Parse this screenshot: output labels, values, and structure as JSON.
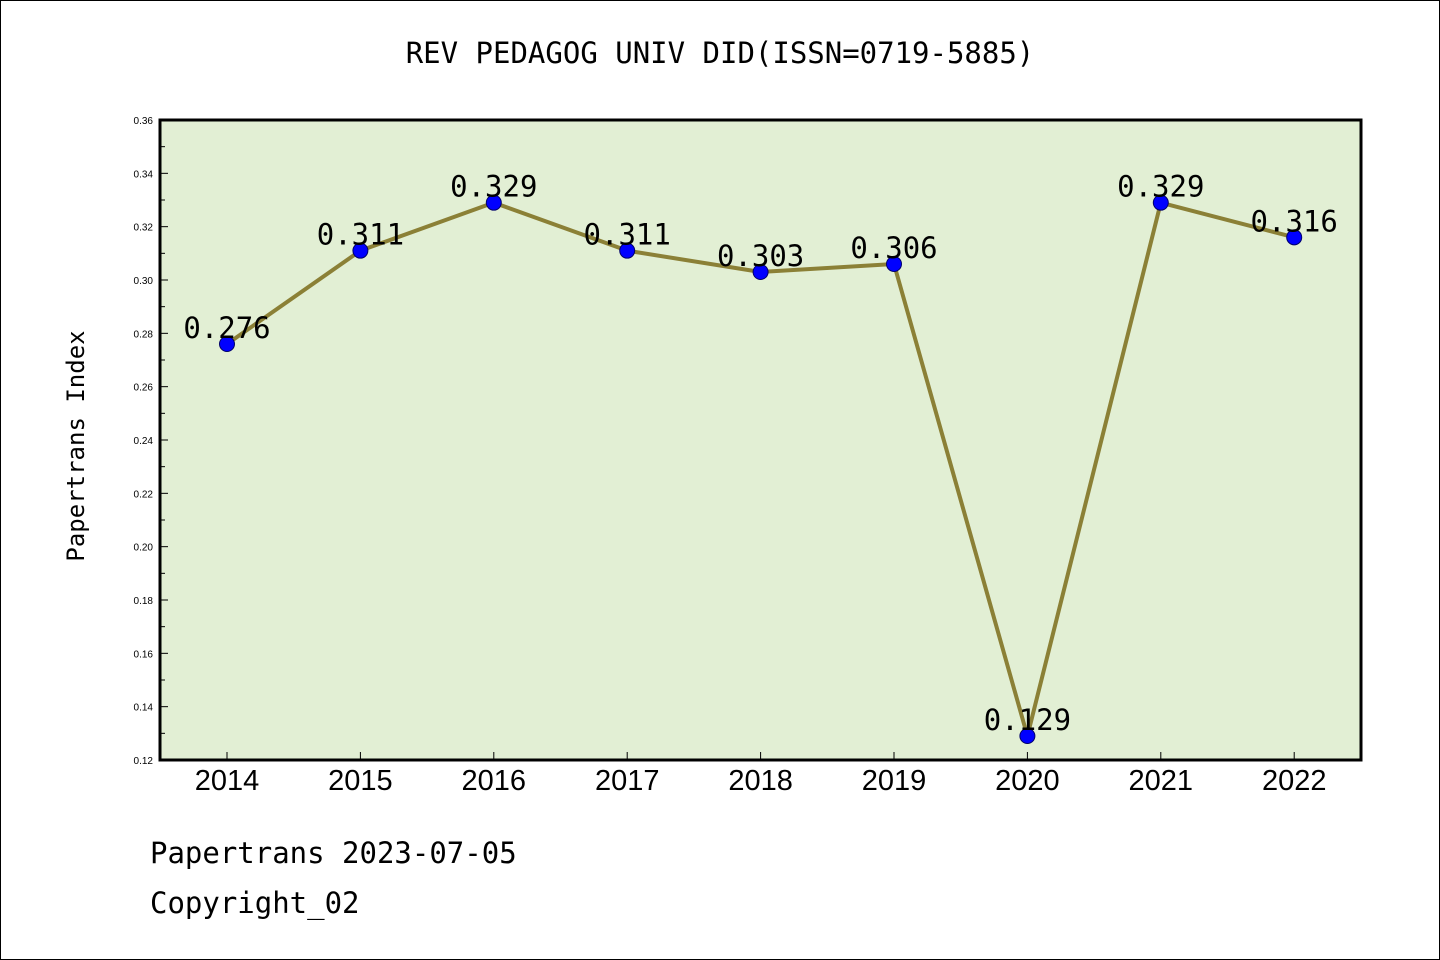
{
  "chart_data": {
    "type": "line",
    "title": "REV PEDAGOG UNIV DID(ISSN=0719-5885)",
    "xlabel": "",
    "ylabel": "Papertrans Index",
    "categories": [
      "2014",
      "2015",
      "2016",
      "2017",
      "2018",
      "2019",
      "2020",
      "2021",
      "2022"
    ],
    "series": [
      {
        "values": [
          0.276,
          0.311,
          0.329,
          0.311,
          0.303,
          0.306,
          0.129,
          0.329,
          0.316
        ]
      }
    ],
    "data_labels": [
      "0.276",
      "0.311",
      "0.329",
      "0.311",
      "0.303",
      "0.306",
      "0.129",
      "0.329",
      "0.316"
    ],
    "ylim": [
      0.12,
      0.36
    ],
    "yticks": [
      "0.12",
      "0.14",
      "0.16",
      "0.18",
      "0.20",
      "0.22",
      "0.24",
      "0.26",
      "0.28",
      "0.30",
      "0.32",
      "0.34",
      "0.36"
    ],
    "grid": false,
    "legend": "none",
    "colors": {
      "plot_background": "#e2efd4",
      "line": "#8b8036",
      "marker": "#0000ff"
    }
  },
  "footer": {
    "source": "Papertrans 2023-07-05",
    "copyright": "Copyright_02"
  }
}
